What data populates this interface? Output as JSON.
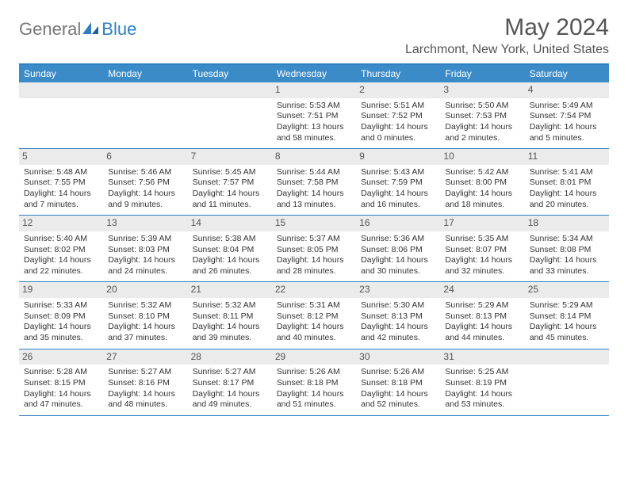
{
  "logo": {
    "part1": "General",
    "part2": "Blue"
  },
  "title": "May 2024",
  "location": "Larchmont, New York, United States",
  "colors": {
    "header_blue": "#3b8bc9",
    "accent_blue": "#2f7fc2",
    "daynum_bg": "#ebebeb",
    "text": "#333333",
    "title_text": "#555555"
  },
  "day_headers": [
    "Sunday",
    "Monday",
    "Tuesday",
    "Wednesday",
    "Thursday",
    "Friday",
    "Saturday"
  ],
  "weeks": [
    [
      {
        "empty": true
      },
      {
        "empty": true
      },
      {
        "empty": true
      },
      {
        "day": "1",
        "sunrise": "Sunrise: 5:53 AM",
        "sunset": "Sunset: 7:51 PM",
        "daylight": "Daylight: 13 hours and 58 minutes."
      },
      {
        "day": "2",
        "sunrise": "Sunrise: 5:51 AM",
        "sunset": "Sunset: 7:52 PM",
        "daylight": "Daylight: 14 hours and 0 minutes."
      },
      {
        "day": "3",
        "sunrise": "Sunrise: 5:50 AM",
        "sunset": "Sunset: 7:53 PM",
        "daylight": "Daylight: 14 hours and 2 minutes."
      },
      {
        "day": "4",
        "sunrise": "Sunrise: 5:49 AM",
        "sunset": "Sunset: 7:54 PM",
        "daylight": "Daylight: 14 hours and 5 minutes."
      }
    ],
    [
      {
        "day": "5",
        "sunrise": "Sunrise: 5:48 AM",
        "sunset": "Sunset: 7:55 PM",
        "daylight": "Daylight: 14 hours and 7 minutes."
      },
      {
        "day": "6",
        "sunrise": "Sunrise: 5:46 AM",
        "sunset": "Sunset: 7:56 PM",
        "daylight": "Daylight: 14 hours and 9 minutes."
      },
      {
        "day": "7",
        "sunrise": "Sunrise: 5:45 AM",
        "sunset": "Sunset: 7:57 PM",
        "daylight": "Daylight: 14 hours and 11 minutes."
      },
      {
        "day": "8",
        "sunrise": "Sunrise: 5:44 AM",
        "sunset": "Sunset: 7:58 PM",
        "daylight": "Daylight: 14 hours and 13 minutes."
      },
      {
        "day": "9",
        "sunrise": "Sunrise: 5:43 AM",
        "sunset": "Sunset: 7:59 PM",
        "daylight": "Daylight: 14 hours and 16 minutes."
      },
      {
        "day": "10",
        "sunrise": "Sunrise: 5:42 AM",
        "sunset": "Sunset: 8:00 PM",
        "daylight": "Daylight: 14 hours and 18 minutes."
      },
      {
        "day": "11",
        "sunrise": "Sunrise: 5:41 AM",
        "sunset": "Sunset: 8:01 PM",
        "daylight": "Daylight: 14 hours and 20 minutes."
      }
    ],
    [
      {
        "day": "12",
        "sunrise": "Sunrise: 5:40 AM",
        "sunset": "Sunset: 8:02 PM",
        "daylight": "Daylight: 14 hours and 22 minutes."
      },
      {
        "day": "13",
        "sunrise": "Sunrise: 5:39 AM",
        "sunset": "Sunset: 8:03 PM",
        "daylight": "Daylight: 14 hours and 24 minutes."
      },
      {
        "day": "14",
        "sunrise": "Sunrise: 5:38 AM",
        "sunset": "Sunset: 8:04 PM",
        "daylight": "Daylight: 14 hours and 26 minutes."
      },
      {
        "day": "15",
        "sunrise": "Sunrise: 5:37 AM",
        "sunset": "Sunset: 8:05 PM",
        "daylight": "Daylight: 14 hours and 28 minutes."
      },
      {
        "day": "16",
        "sunrise": "Sunrise: 5:36 AM",
        "sunset": "Sunset: 8:06 PM",
        "daylight": "Daylight: 14 hours and 30 minutes."
      },
      {
        "day": "17",
        "sunrise": "Sunrise: 5:35 AM",
        "sunset": "Sunset: 8:07 PM",
        "daylight": "Daylight: 14 hours and 32 minutes."
      },
      {
        "day": "18",
        "sunrise": "Sunrise: 5:34 AM",
        "sunset": "Sunset: 8:08 PM",
        "daylight": "Daylight: 14 hours and 33 minutes."
      }
    ],
    [
      {
        "day": "19",
        "sunrise": "Sunrise: 5:33 AM",
        "sunset": "Sunset: 8:09 PM",
        "daylight": "Daylight: 14 hours and 35 minutes."
      },
      {
        "day": "20",
        "sunrise": "Sunrise: 5:32 AM",
        "sunset": "Sunset: 8:10 PM",
        "daylight": "Daylight: 14 hours and 37 minutes."
      },
      {
        "day": "21",
        "sunrise": "Sunrise: 5:32 AM",
        "sunset": "Sunset: 8:11 PM",
        "daylight": "Daylight: 14 hours and 39 minutes."
      },
      {
        "day": "22",
        "sunrise": "Sunrise: 5:31 AM",
        "sunset": "Sunset: 8:12 PM",
        "daylight": "Daylight: 14 hours and 40 minutes."
      },
      {
        "day": "23",
        "sunrise": "Sunrise: 5:30 AM",
        "sunset": "Sunset: 8:13 PM",
        "daylight": "Daylight: 14 hours and 42 minutes."
      },
      {
        "day": "24",
        "sunrise": "Sunrise: 5:29 AM",
        "sunset": "Sunset: 8:13 PM",
        "daylight": "Daylight: 14 hours and 44 minutes."
      },
      {
        "day": "25",
        "sunrise": "Sunrise: 5:29 AM",
        "sunset": "Sunset: 8:14 PM",
        "daylight": "Daylight: 14 hours and 45 minutes."
      }
    ],
    [
      {
        "day": "26",
        "sunrise": "Sunrise: 5:28 AM",
        "sunset": "Sunset: 8:15 PM",
        "daylight": "Daylight: 14 hours and 47 minutes."
      },
      {
        "day": "27",
        "sunrise": "Sunrise: 5:27 AM",
        "sunset": "Sunset: 8:16 PM",
        "daylight": "Daylight: 14 hours and 48 minutes."
      },
      {
        "day": "28",
        "sunrise": "Sunrise: 5:27 AM",
        "sunset": "Sunset: 8:17 PM",
        "daylight": "Daylight: 14 hours and 49 minutes."
      },
      {
        "day": "29",
        "sunrise": "Sunrise: 5:26 AM",
        "sunset": "Sunset: 8:18 PM",
        "daylight": "Daylight: 14 hours and 51 minutes."
      },
      {
        "day": "30",
        "sunrise": "Sunrise: 5:26 AM",
        "sunset": "Sunset: 8:18 PM",
        "daylight": "Daylight: 14 hours and 52 minutes."
      },
      {
        "day": "31",
        "sunrise": "Sunrise: 5:25 AM",
        "sunset": "Sunset: 8:19 PM",
        "daylight": "Daylight: 14 hours and 53 minutes."
      },
      {
        "empty": true
      }
    ]
  ]
}
